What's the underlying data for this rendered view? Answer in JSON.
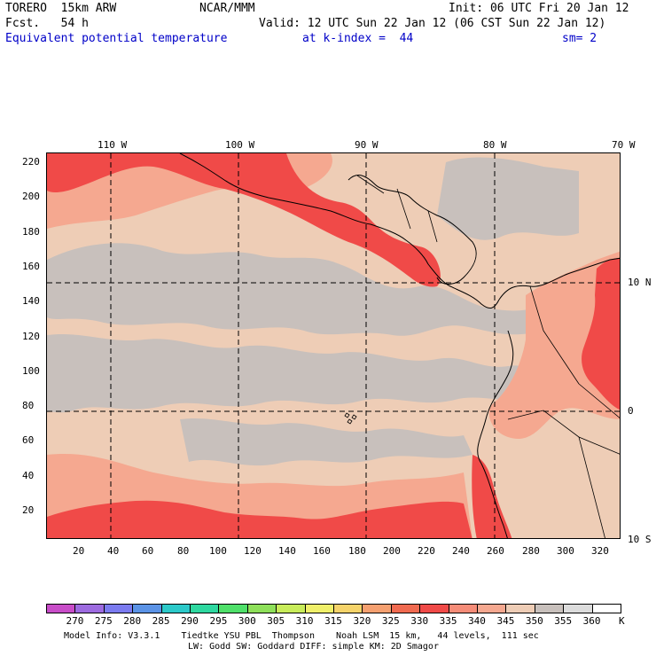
{
  "header": {
    "model": "TORERO  15km ARW",
    "center": "NCAR/MMM",
    "init": "Init: 06 UTC Fri 20 Jan 12",
    "fcst": "Fcst.   54 h",
    "valid": "Valid: 12 UTC Sun 22 Jan 12 (06 CST Sun 22 Jan 12)",
    "field": "Equivalent potential temperature",
    "level": "at k-index =  44",
    "smoothing": "sm= 2"
  },
  "map": {
    "top_lon_labels": [
      "110 W",
      "100 W",
      "90 W",
      "80 W",
      "70 W"
    ],
    "right_lat_labels": [
      "10 N",
      "0",
      "10 S"
    ],
    "left_grid_labels": [
      "220",
      "200",
      "180",
      "160",
      "140",
      "120",
      "100",
      "80",
      "60",
      "40",
      "20"
    ],
    "bottom_grid_labels": [
      "20",
      "40",
      "60",
      "80",
      "100",
      "120",
      "140",
      "160",
      "180",
      "200",
      "220",
      "240",
      "260",
      "280",
      "300",
      "320"
    ]
  },
  "colorbar": {
    "levels": [
      "270",
      "275",
      "280",
      "285",
      "290",
      "295",
      "300",
      "305",
      "310",
      "315",
      "320",
      "325",
      "330",
      "335",
      "340",
      "345",
      "350",
      "355",
      "360"
    ],
    "unit": "K",
    "colors": [
      "#c84dc8",
      "#9d6be0",
      "#7b7bf0",
      "#5b93e6",
      "#2cc9c9",
      "#2ed8a0",
      "#4fe06a",
      "#8ee05a",
      "#c8ec5a",
      "#f0f06a",
      "#f5d36a",
      "#f5a070",
      "#f06a50",
      "#f04a48",
      "#f58c78",
      "#f5a890",
      "#eecdb6",
      "#c8c0bc",
      "#dcdcdc",
      "#ffffff"
    ]
  },
  "footer": {
    "line1": "Model Info: V3.3.1    Tiedtke YSU PBL  Thompson    Noah LSM  15 km,   44 levels,  111 sec",
    "line2": "LW: Godd SW: Goddard DIFF: simple KM: 2D Smagor"
  }
}
